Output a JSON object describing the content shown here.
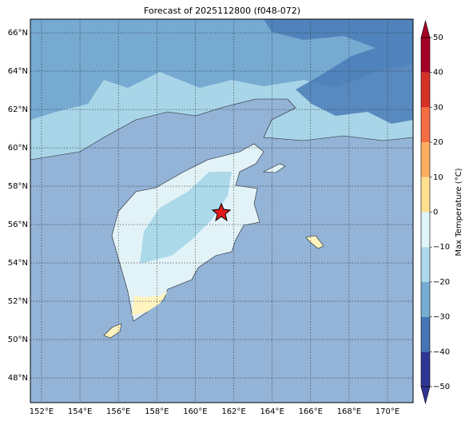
{
  "title": "Forecast of 2025112800 (f048-072)",
  "map": {
    "xlim": [
      151.42,
      171.33
    ],
    "ylim": [
      46.71,
      66.71
    ],
    "xticks": [
      {
        "value": 152,
        "label": "152°E"
      },
      {
        "value": 154,
        "label": "154°E"
      },
      {
        "value": 156,
        "label": "156°E"
      },
      {
        "value": 158,
        "label": "158°E"
      },
      {
        "value": 160,
        "label": "160°E"
      },
      {
        "value": 162,
        "label": "162°E"
      },
      {
        "value": 164,
        "label": "164°E"
      },
      {
        "value": 166,
        "label": "166°E"
      },
      {
        "value": 168,
        "label": "168°E"
      },
      {
        "value": 170,
        "label": "170°E"
      }
    ],
    "yticks": [
      {
        "value": 48,
        "label": "48°N"
      },
      {
        "value": 50,
        "label": "50°N"
      },
      {
        "value": 52,
        "label": "52°N"
      },
      {
        "value": 54,
        "label": "54°N"
      },
      {
        "value": 56,
        "label": "56°N"
      },
      {
        "value": 58,
        "label": "58°N"
      },
      {
        "value": 60,
        "label": "60°N"
      },
      {
        "value": 62,
        "label": "62°N"
      },
      {
        "value": 64,
        "label": "64°N"
      },
      {
        "value": 66,
        "label": "66°N"
      }
    ]
  },
  "colorbar": {
    "label": "Max Temperature (°C)",
    "ticks": [
      {
        "value": -50,
        "label": "−50"
      },
      {
        "value": -40,
        "label": "−40"
      },
      {
        "value": -30,
        "label": "−30"
      },
      {
        "value": -20,
        "label": "−20"
      },
      {
        "value": -10,
        "label": "−10"
      },
      0,
      10,
      20,
      30,
      40,
      50
    ],
    "colors": [
      "#313695",
      "#4575b4",
      "#74add1",
      "#abd9e9",
      "#e0f3f8",
      "#fee090",
      "#fdae61",
      "#f46d43",
      "#d73027",
      "#a50026"
    ]
  }
}
